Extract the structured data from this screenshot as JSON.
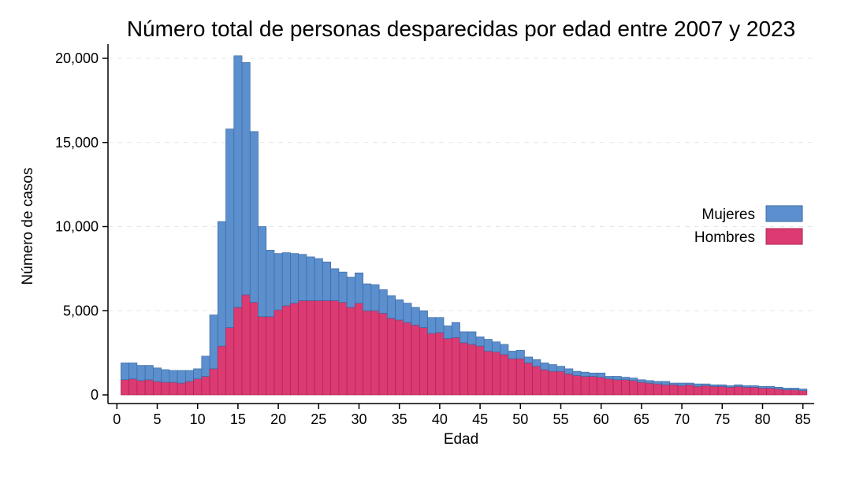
{
  "chart_data": {
    "type": "bar",
    "stacked": true,
    "title": "Número total de personas desparecidas por edad entre 2007 y 2023",
    "xlabel": "Edad",
    "ylabel": "Número de casos",
    "xlim": [
      0,
      86
    ],
    "ylim": [
      0,
      20500
    ],
    "x_ticks": [
      0,
      5,
      10,
      15,
      20,
      25,
      30,
      35,
      40,
      45,
      50,
      55,
      60,
      65,
      70,
      75,
      80,
      85
    ],
    "x_tick_labels": [
      "0",
      "5",
      "10",
      "15",
      "20",
      "25",
      "30",
      "35",
      "40",
      "45",
      "50",
      "55",
      "60",
      "65",
      "70",
      "75",
      "80",
      "85"
    ],
    "y_ticks": [
      0,
      5000,
      10000,
      15000,
      20000
    ],
    "y_tick_labels": [
      "0",
      "5,000",
      "10,000",
      "15,000",
      "20,000"
    ],
    "grid": "horizontal dashed",
    "legend_position": "right",
    "ages": [
      1,
      2,
      3,
      4,
      5,
      6,
      7,
      8,
      9,
      10,
      11,
      12,
      13,
      14,
      15,
      16,
      17,
      18,
      19,
      20,
      21,
      22,
      23,
      24,
      25,
      26,
      27,
      28,
      29,
      30,
      31,
      32,
      33,
      34,
      35,
      36,
      37,
      38,
      39,
      40,
      41,
      42,
      43,
      44,
      45,
      46,
      47,
      48,
      49,
      50,
      51,
      52,
      53,
      54,
      55,
      56,
      57,
      58,
      59,
      60,
      61,
      62,
      63,
      64,
      65,
      66,
      67,
      68,
      69,
      70,
      71,
      72,
      73,
      74,
      75,
      76,
      77,
      78,
      79,
      80,
      81,
      82,
      83,
      84,
      85
    ],
    "series": [
      {
        "name": "Hombres",
        "color": "#dc3a72",
        "values": [
          900,
          950,
          850,
          900,
          800,
          750,
          750,
          700,
          800,
          950,
          1100,
          1550,
          2900,
          4000,
          5200,
          5950,
          5500,
          4650,
          4650,
          5050,
          5300,
          5450,
          5600,
          5600,
          5600,
          5600,
          5600,
          5500,
          5200,
          5450,
          5000,
          5000,
          4850,
          4550,
          4450,
          4300,
          4150,
          4000,
          3650,
          3700,
          3350,
          3400,
          3100,
          3000,
          2900,
          2600,
          2550,
          2400,
          2150,
          2150,
          1900,
          1700,
          1500,
          1400,
          1400,
          1250,
          1150,
          1100,
          1100,
          1050,
          950,
          900,
          900,
          850,
          750,
          700,
          650,
          600,
          600,
          550,
          600,
          500,
          550,
          500,
          500,
          450,
          500,
          450,
          450,
          400,
          400,
          350,
          300,
          300,
          250
        ]
      },
      {
        "name": "Mujeres",
        "color": "#5b8fce",
        "values": [
          1000,
          950,
          900,
          850,
          800,
          750,
          700,
          750,
          650,
          600,
          1200,
          3200,
          7400,
          11800,
          14950,
          13800,
          10150,
          5350,
          3950,
          3350,
          3150,
          2950,
          2750,
          2600,
          2500,
          2300,
          1900,
          1800,
          1800,
          1800,
          1600,
          1550,
          1400,
          1350,
          1200,
          1150,
          1050,
          1000,
          950,
          900,
          750,
          900,
          650,
          750,
          550,
          700,
          600,
          600,
          450,
          500,
          350,
          400,
          400,
          400,
          300,
          300,
          250,
          250,
          200,
          250,
          150,
          200,
          150,
          150,
          150,
          150,
          150,
          200,
          100,
          150,
          100,
          150,
          100,
          100,
          100,
          100,
          100,
          100,
          100,
          100,
          100,
          100,
          100,
          100,
          100
        ]
      }
    ]
  },
  "legend": {
    "items": [
      {
        "label": "Mujeres",
        "color": "#5b8fce"
      },
      {
        "label": "Hombres",
        "color": "#dc3a72"
      }
    ]
  }
}
